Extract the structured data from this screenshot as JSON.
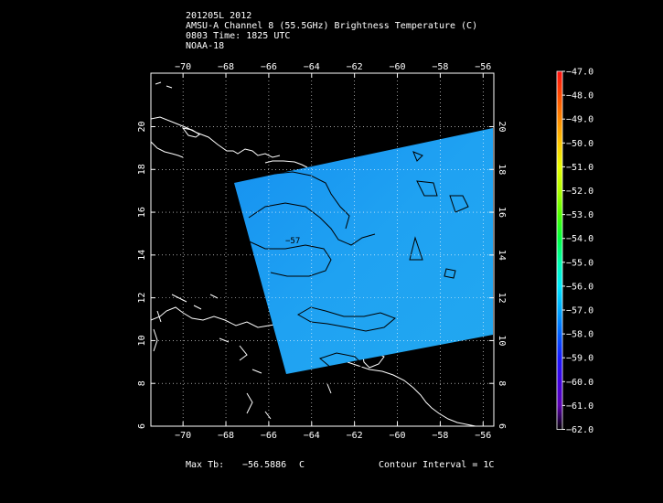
{
  "header": {
    "line1": "201205L 2012",
    "line2": "AMSU-A Channel 8 (55.5GHz) Brightness Temperature (C)",
    "line3": "0803 Time: 1825 UTC",
    "line4": "NOAA-18"
  },
  "map": {
    "lon_range": [
      -71.5,
      -55.5
    ],
    "lat_range": [
      6,
      22.5
    ],
    "lon_ticks": [
      -70,
      -68,
      -66,
      -64,
      -62,
      -60,
      -58,
      -56
    ],
    "lon_labels": [
      "−70",
      "−68",
      "−66",
      "−64",
      "−62",
      "−60",
      "−58",
      "−56"
    ],
    "lat_ticks": [
      6,
      8,
      10,
      12,
      14,
      16,
      18,
      20
    ],
    "lat_labels": [
      "6",
      "8",
      "10",
      "12",
      "14",
      "16",
      "18",
      "20"
    ],
    "contour_label": "−57",
    "swath_color": "#1aa0f0",
    "coast_color": "#ffffff",
    "contour_color": "#000000"
  },
  "colorbar": {
    "labels": [
      "−47.0",
      "−48.0",
      "−49.0",
      "−50.0",
      "−51.0",
      "−52.0",
      "−53.0",
      "−54.0",
      "−55.0",
      "−56.0",
      "−57.0",
      "−58.0",
      "−59.0",
      "−60.0",
      "−61.0",
      "−62.0"
    ],
    "colors": [
      "#ff1010",
      "#ff4a00",
      "#ff8a00",
      "#ffc800",
      "#e8ff00",
      "#b0ff00",
      "#50ff00",
      "#00ff40",
      "#00ffb0",
      "#00e8ff",
      "#00a8ff",
      "#0060ff",
      "#1818ff",
      "#4000e0",
      "#5c00b0",
      "#000000"
    ]
  },
  "footer": {
    "max_label": "Max Tb:",
    "max_value": "−56.5886",
    "max_unit": "C",
    "contour_interval": "Contour Interval = 1C"
  }
}
